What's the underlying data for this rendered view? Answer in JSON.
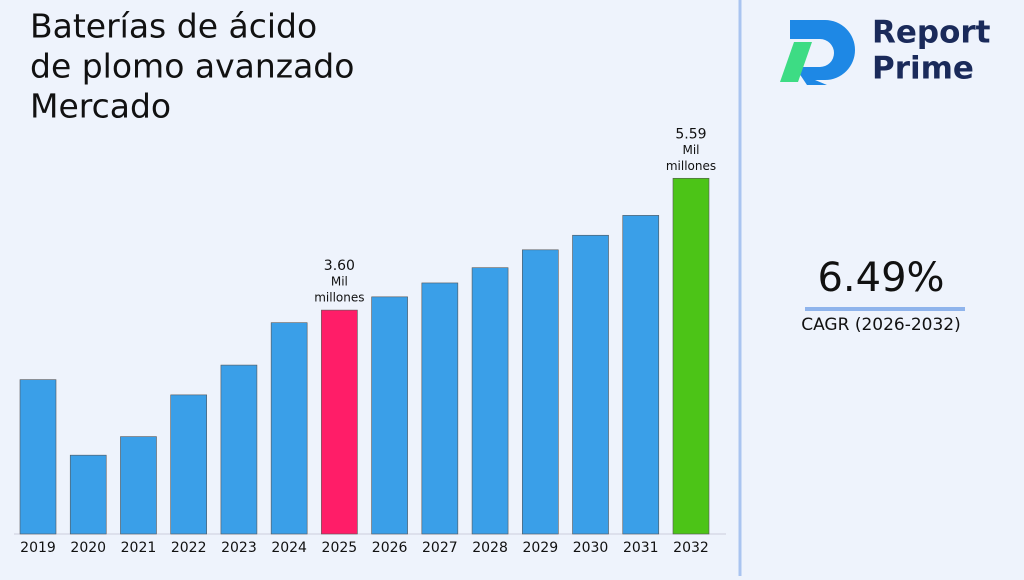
{
  "chart_data": {
    "type": "bar",
    "title_lines": [
      "Baterías de ácido",
      "de plomo avanzado",
      "Mercado"
    ],
    "categories": [
      "2019",
      "2020",
      "2021",
      "2022",
      "2023",
      "2024",
      "2025",
      "2026",
      "2027",
      "2028",
      "2029",
      "2030",
      "2031",
      "2032"
    ],
    "values": [
      2.55,
      1.41,
      1.69,
      2.32,
      2.77,
      3.41,
      3.6,
      3.8,
      4.01,
      4.24,
      4.51,
      4.73,
      5.03,
      5.59
    ],
    "value_labels": [
      null,
      null,
      null,
      null,
      null,
      null,
      "3.60",
      null,
      null,
      null,
      null,
      null,
      null,
      "5.59"
    ],
    "value_unit_lines": [
      "Mil",
      "millones"
    ],
    "colors": [
      "#3a9fe8",
      "#3a9fe8",
      "#3a9fe8",
      "#3a9fe8",
      "#3a9fe8",
      "#3a9fe8",
      "#ff1d68",
      "#3a9fe8",
      "#3a9fe8",
      "#3a9fe8",
      "#3a9fe8",
      "#3a9fe8",
      "#3a9fe8",
      "#4cc417"
    ],
    "ylim": [
      0.22,
      6.5
    ]
  },
  "brand": {
    "line1": "Report",
    "line2": "Prime"
  },
  "cagr": {
    "value": "6.49%",
    "label": "CAGR (2026-2032)"
  }
}
